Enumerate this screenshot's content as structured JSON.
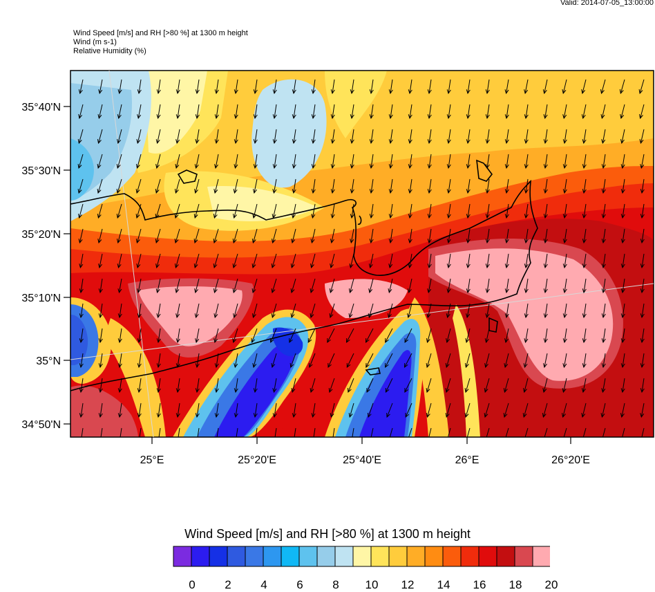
{
  "header": {
    "valid": "Valid: 2014-07-05_13:00:00",
    "title_lines": [
      "Wind Speed [m/s] and RH [>80 %] at 1300 m height",
      "Wind   (m s-1)",
      "Relative Humidity   (%)"
    ]
  },
  "map": {
    "lat_labels": [
      "35°40'N",
      "35°30'N",
      "35°20'N",
      "35°10'N",
      "35°N",
      "34°50'N"
    ],
    "lon_labels": [
      "25°E",
      "25°20'E",
      "25°40'E",
      "26°E",
      "26°20'E"
    ]
  },
  "legend": {
    "title": "Wind Speed [m/s] and RH [>80 %] at 1300 m height",
    "colors": [
      "#7b2be0",
      "#2c1cf0",
      "#1530e6",
      "#2f5ae0",
      "#3a78e6",
      "#2d97f0",
      "#10b8f5",
      "#5ec2ee",
      "#96cdea",
      "#bfe3f2",
      "#fff6a6",
      "#ffe45a",
      "#ffcc3c",
      "#ffad26",
      "#ff8c12",
      "#fb5c0c",
      "#f02c0c",
      "#e00c0c",
      "#c30e10",
      "#d94850",
      "#ffaab0"
    ],
    "labels": [
      "0",
      "2",
      "4",
      "6",
      "8",
      "10",
      "12",
      "14",
      "16",
      "18",
      "20"
    ]
  }
}
